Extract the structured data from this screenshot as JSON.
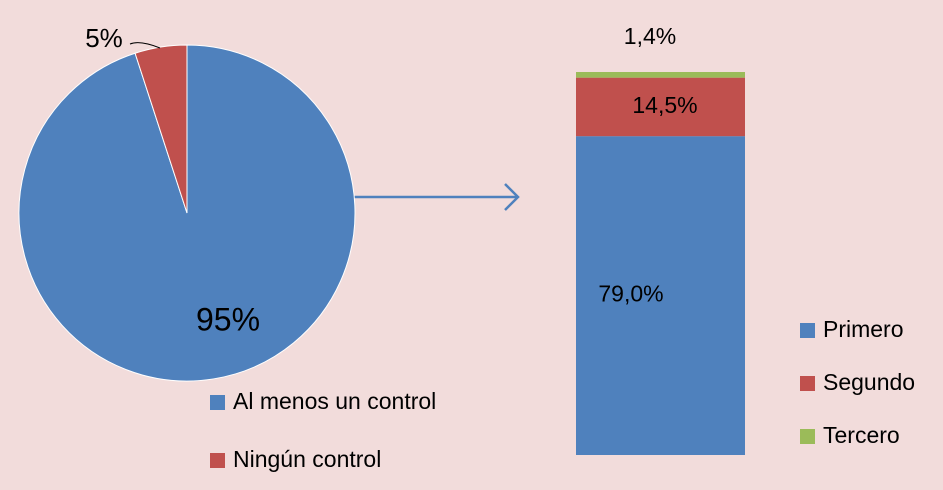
{
  "chart_data": [
    {
      "type": "pie",
      "categories": [
        "Al menos un control",
        "Ningún control"
      ],
      "values": [
        95,
        5
      ],
      "value_labels": [
        "95%",
        "5%"
      ],
      "colors": [
        "#4f81bd",
        "#c0504d"
      ]
    },
    {
      "type": "stacked-bar",
      "categories": [
        null
      ],
      "series": [
        {
          "name": "Primero",
          "color": "#4f81bd",
          "values": [
            79.0
          ],
          "value_labels": [
            "79,0%"
          ]
        },
        {
          "name": "Segundo",
          "color": "#c0504d",
          "values": [
            14.5
          ],
          "value_labels": [
            "14,5%"
          ]
        },
        {
          "name": "Tercero",
          "color": "#9bbb59",
          "values": [
            1.4
          ],
          "value_labels": [
            "1,4%"
          ]
        }
      ]
    }
  ]
}
